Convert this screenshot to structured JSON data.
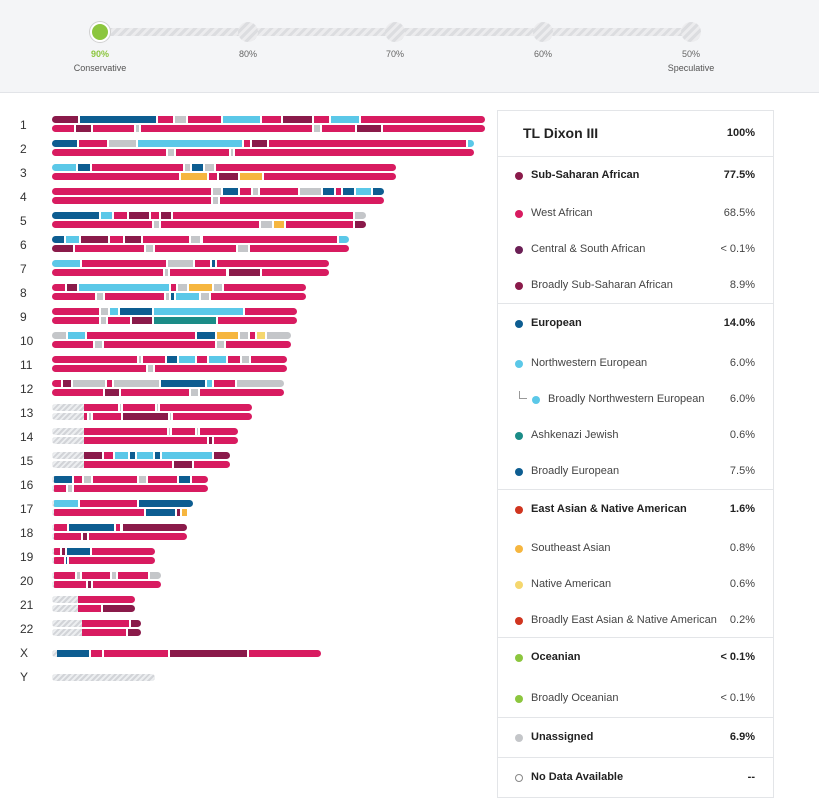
{
  "slider": {
    "stops": [
      {
        "pct": "90%",
        "desc": "Conservative",
        "active": true
      },
      {
        "pct": "80%",
        "desc": ""
      },
      {
        "pct": "70%",
        "desc": ""
      },
      {
        "pct": "60%",
        "desc": ""
      },
      {
        "pct": "50%",
        "desc": "Speculative"
      }
    ]
  },
  "colors": {
    "west_african": "#d81b60",
    "sub_saharan": "#8a1a4a",
    "central_south_african": "#6b1f55",
    "northwestern_european": "#5bc8e8",
    "broadly_european": "#0d5d91",
    "ashkenazi": "#1b8c87",
    "southeast_asian": "#f6b63f",
    "native_american": "#f5d76e",
    "broadly_east_asian_native": "#d0351f",
    "oceanian": "#8cc63e",
    "unassigned": "#c4c6c9",
    "slider_active": "#8cc63e"
  },
  "chromosomes": [
    "1",
    "2",
    "3",
    "4",
    "5",
    "6",
    "7",
    "8",
    "9",
    "10",
    "11",
    "12",
    "13",
    "14",
    "15",
    "16",
    "17",
    "18",
    "19",
    "20",
    "21",
    "22",
    "X",
    "Y"
  ],
  "legend": {
    "name": "TL Dixon III",
    "total": "100%",
    "rows": [
      {
        "name": "Sub-Saharan African",
        "value": "77.5%",
        "color": "#8a1a4a",
        "level": "main"
      },
      {
        "name": "West African",
        "value": "68.5%",
        "color": "#d81b60",
        "level": "sub"
      },
      {
        "name": "Central & South African",
        "value": "< 0.1%",
        "color": "#6b1f55",
        "level": "sub"
      },
      {
        "name": "Broadly Sub-Saharan African",
        "value": "8.9%",
        "color": "#8a1a4a",
        "level": "sub"
      },
      {
        "name": "European",
        "value": "14.0%",
        "color": "#0d5d91",
        "level": "main"
      },
      {
        "name": "Northwestern European",
        "value": "6.0%",
        "color": "#5bc8e8",
        "level": "sub"
      },
      {
        "name": "Broadly Northwestern European",
        "value": "6.0%",
        "color": "#5bc8e8",
        "level": "sub2"
      },
      {
        "name": "Ashkenazi Jewish",
        "value": "0.6%",
        "color": "#1b8c87",
        "level": "sub"
      },
      {
        "name": "Broadly European",
        "value": "7.5%",
        "color": "#0d5d91",
        "level": "sub"
      },
      {
        "name": "East Asian & Native American",
        "value": "1.6%",
        "color": "#d0351f",
        "level": "main"
      },
      {
        "name": "Southeast Asian",
        "value": "0.8%",
        "color": "#f6b63f",
        "level": "sub"
      },
      {
        "name": "Native American",
        "value": "0.6%",
        "color": "#f5d76e",
        "level": "sub"
      },
      {
        "name": "Broadly East Asian & Native American",
        "value": "0.2%",
        "color": "#d0351f",
        "level": "sub"
      },
      {
        "name": "Oceanian",
        "value": "< 0.1%",
        "color": "#8cc63e",
        "level": "main"
      },
      {
        "name": "Broadly Oceanian",
        "value": "< 0.1%",
        "color": "#8cc63e",
        "level": "sub"
      },
      {
        "name": "Unassigned",
        "value": "6.9%",
        "color": "#c4c6c9",
        "level": "main"
      },
      {
        "name": "No Data Available",
        "value": "--",
        "color": "",
        "level": "main"
      }
    ]
  }
}
